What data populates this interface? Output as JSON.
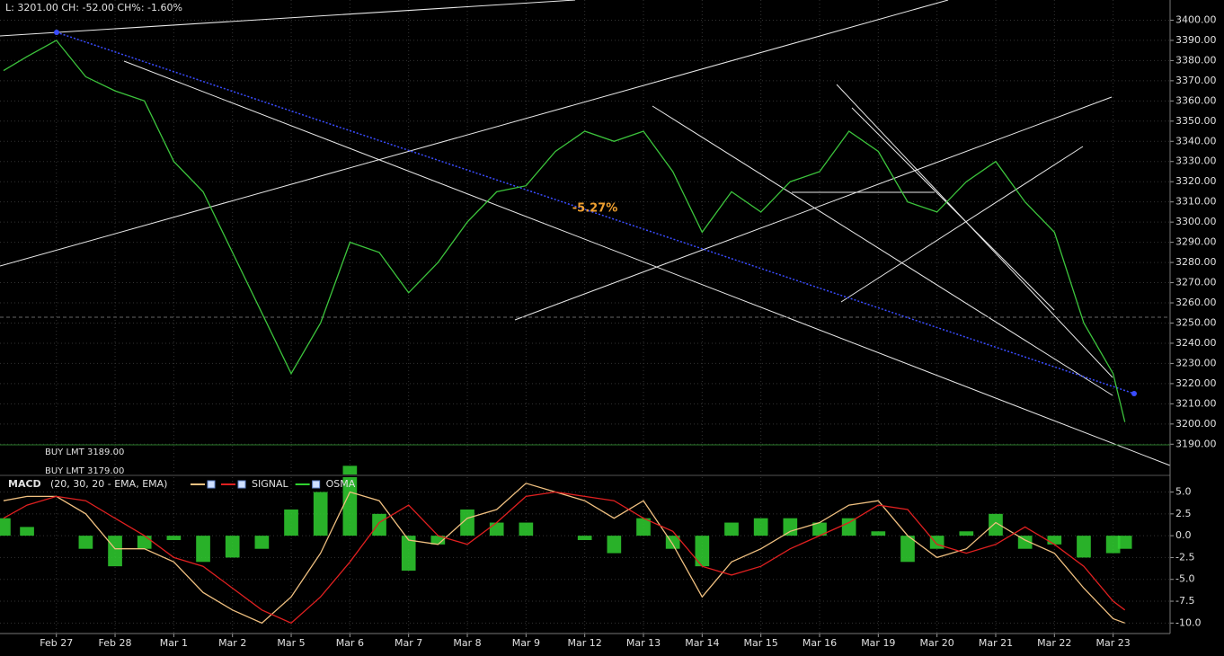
{
  "header": "L: 3201.00 CH: -52.00 CH%: -1.60%",
  "chart_data": [
    {
      "type": "line",
      "annotations": [
        "-5.27%"
      ],
      "orders": [
        "BUY LMT 3189.00",
        "BUY LMT 3179.00"
      ],
      "x": [
        -0.9,
        -0.5,
        0,
        0.5,
        1,
        1.5,
        2,
        2.5,
        3,
        3.5,
        4,
        4.5,
        5,
        5.5,
        6,
        6.5,
        7,
        7.5,
        8,
        8.5,
        9,
        9.5,
        10,
        10.5,
        11,
        11.5,
        12,
        12.5,
        13,
        13.5,
        14,
        14.5,
        15,
        15.5,
        16,
        16.5,
        17,
        17.5,
        18,
        18.2
      ],
      "series": [
        {
          "color": "#3cc43c",
          "values": [
            3375,
            3382,
            3390,
            3372,
            3365,
            3360,
            3330,
            3315,
            3285,
            3255,
            3225,
            3250,
            3290,
            3285,
            3265,
            3280,
            3300,
            3315,
            3318,
            3335,
            3345,
            3340,
            3345,
            3325,
            3295,
            3315,
            3305,
            3320,
            3325,
            3345,
            3335,
            3310,
            3305,
            3320,
            3330,
            3310,
            3295,
            3250,
            3225,
            3201
          ]
        }
      ],
      "xlim": [
        -0.96,
        18.97
      ],
      "ylim": [
        3175,
        3410
      ],
      "yticks": [
        {
          "value": 3190,
          "label": "3190.00"
        },
        {
          "value": 3200,
          "label": "3200.00"
        },
        {
          "value": 3210,
          "label": "3210.00"
        },
        {
          "value": 3220,
          "label": "3220.00"
        },
        {
          "value": 3230,
          "label": "3230.00"
        },
        {
          "value": 3240,
          "label": "3240.00"
        },
        {
          "value": 3250,
          "label": "3250.00"
        },
        {
          "value": 3260,
          "label": "3260.00"
        },
        {
          "value": 3270,
          "label": "3270.00"
        },
        {
          "value": 3280,
          "label": "3280.00"
        },
        {
          "value": 3290,
          "label": "3290.00"
        },
        {
          "value": 3300,
          "label": "3300.00"
        },
        {
          "value": 3310,
          "label": "3310.00"
        },
        {
          "value": 3320,
          "label": "3320.00"
        },
        {
          "value": 3330,
          "label": "3330.00"
        },
        {
          "value": 3340,
          "label": "3340.00"
        },
        {
          "value": 3350,
          "label": "3350.00"
        },
        {
          "value": 3360,
          "label": "3360.00"
        },
        {
          "value": 3370,
          "label": "3370.00"
        },
        {
          "value": 3380,
          "label": "3380.00"
        },
        {
          "value": 3390,
          "label": "3390.00"
        },
        {
          "value": 3400,
          "label": "3400.00"
        }
      ],
      "grid": true
    },
    {
      "type": "macd",
      "title": "MACD",
      "subtitle": "(20, 30, 20 - EMA, EMA)",
      "x": [
        -0.9,
        -0.5,
        0,
        0.5,
        1,
        1.5,
        2,
        2.5,
        3,
        3.5,
        4,
        4.5,
        5,
        5.5,
        6,
        6.5,
        7,
        7.5,
        8,
        8.5,
        9,
        9.5,
        10,
        10.5,
        11,
        11.5,
        12,
        12.5,
        13,
        13.5,
        14,
        14.5,
        15,
        15.5,
        16,
        16.5,
        17,
        17.5,
        18,
        18.2
      ],
      "series": [
        {
          "color": "#f0c080",
          "values": [
            4,
            4.5,
            4.5,
            2.5,
            -1.5,
            -1.5,
            -3,
            -6.5,
            -8.5,
            -10,
            -7,
            -2,
            5,
            4,
            -0.5,
            -1,
            2,
            3,
            6,
            5,
            4,
            2,
            4,
            -1,
            -7,
            -3,
            -1.5,
            0.5,
            1.5,
            3.5,
            4,
            0,
            -2.5,
            -1.5,
            1.5,
            -0.5,
            -2,
            -6,
            -9.5,
            -10
          ]
        },
        {
          "name": "SIGNAL",
          "color": "#e02020",
          "values": [
            2,
            3.5,
            4.5,
            4,
            2,
            0,
            -2.5,
            -3.5,
            -6,
            -8.5,
            -10,
            -7,
            -3,
            1.5,
            3.5,
            0,
            -1,
            1.5,
            4.5,
            5,
            4.5,
            4,
            2,
            0.5,
            -3.5,
            -4.5,
            -3.5,
            -1.5,
            0,
            1.5,
            3.5,
            3,
            -1,
            -2,
            -1,
            1,
            -1,
            -3.5,
            -7.5,
            -8.5
          ]
        },
        {
          "name": "OSMA",
          "color": "#30d030",
          "bars": true,
          "values": [
            2,
            1,
            0,
            -1.5,
            -3.5,
            -1.5,
            -0.5,
            -3,
            -2.5,
            -1.5,
            3,
            5,
            8,
            2.5,
            -4,
            -1,
            3,
            1.5,
            1.5,
            0,
            -0.5,
            -2,
            2,
            -1.5,
            -3.5,
            1.5,
            2,
            2,
            1.5,
            2,
            0.5,
            -3,
            -1.5,
            0.5,
            2.5,
            -1.5,
            -1,
            -2.5,
            -2,
            -1.5
          ]
        }
      ],
      "xlim": [
        -0.96,
        18.97
      ],
      "ylim": [
        -11.2,
        6.7
      ],
      "xticks": [
        {
          "value": 0,
          "label": "Feb 27"
        },
        {
          "value": 1,
          "label": "Feb 28"
        },
        {
          "value": 2,
          "label": "Mar 1"
        },
        {
          "value": 3,
          "label": "Mar 2"
        },
        {
          "value": 4,
          "label": "Mar 5"
        },
        {
          "value": 5,
          "label": "Mar 6"
        },
        {
          "value": 6,
          "label": "Mar 7"
        },
        {
          "value": 7,
          "label": "Mar 8"
        },
        {
          "value": 8,
          "label": "Mar 9"
        },
        {
          "value": 9,
          "label": "Mar 12"
        },
        {
          "value": 10,
          "label": "Mar 13"
        },
        {
          "value": 11,
          "label": "Mar 14"
        },
        {
          "value": 12,
          "label": "Mar 15"
        },
        {
          "value": 13,
          "label": "Mar 16"
        },
        {
          "value": 14,
          "label": "Mar 19"
        },
        {
          "value": 15,
          "label": "Mar 20"
        },
        {
          "value": 16,
          "label": "Mar 21"
        },
        {
          "value": 17,
          "label": "Mar 22"
        },
        {
          "value": 18,
          "label": "Mar 23"
        }
      ],
      "yticks": [
        {
          "value": 5,
          "label": "5.0"
        },
        {
          "value": 2.5,
          "label": "2.5"
        },
        {
          "value": 0,
          "label": "0.0"
        },
        {
          "value": -2.5,
          "label": "-2.5"
        },
        {
          "value": -5,
          "label": "-5.0"
        },
        {
          "value": -7.5,
          "label": "-7.5"
        },
        {
          "value": -10,
          "label": "-10.0"
        }
      ],
      "grid": true
    }
  ]
}
